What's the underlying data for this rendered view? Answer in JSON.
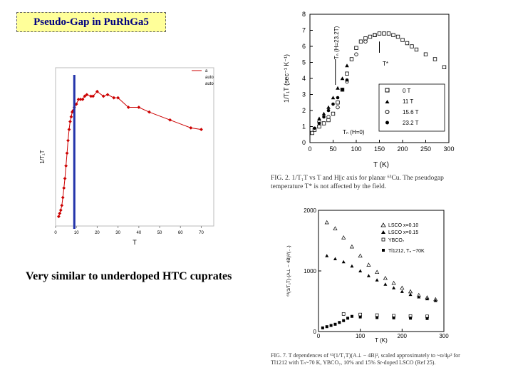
{
  "slide": {
    "title": "Pseudo-Gap in PuRh",
    "title_suffix": "Ga5",
    "subtitle": "Very similar to underdoped HTC cuprates",
    "accent_colors": {
      "title_fill": "#ffff99",
      "title_text": "#000080",
      "red_series": "#cc0000",
      "blue_line": "#2233aa"
    }
  },
  "left_plot": {
    "xlabel": "T",
    "ylabel": "1/T₁T",
    "legend": [
      "a",
      "auto",
      "auto"
    ],
    "vline_x": 9
  },
  "top_right_plot": {
    "ylabel": "1/T₁T (sec⁻¹ K⁻¹)",
    "xlabel": "T (K)",
    "legend": [
      "0 T",
      "11 T",
      "15.6 T",
      "23.2 T"
    ],
    "annotations": {
      "tc_field": "Tₙ (H=23.2T)",
      "tc_zero": "Tₙ (H=0)",
      "t_star": "T*"
    },
    "caption": "FIG. 2. 1/T₁T vs T and H||c axis for planar ⁶³Cu. The pseudogap temperature T* is not affected by the field."
  },
  "bottom_right_plot": {
    "ylabel": "⁶³(1/T₁T)·(A⊥ − 4B)²/(…)",
    "xlabel": "T (K)",
    "legend": [
      "LSCO  x=0.10",
      "LSCO  x=0.15",
      "YBCO₇",
      "Tl1212, Tₙ ~70K"
    ],
    "caption": "FIG. 7. T dependences of ⁶³(1/T₁T)(A⊥ − 4B)², scaled approximately to ~α/4μ² for Tl1212 with Tₙ~70 K, YBCO₇, 10% and 15% Sr-doped LSCO (Ref 25)."
  },
  "chart_data": [
    {
      "type": "scatter",
      "title": "",
      "xlabel": "T",
      "ylabel": "1/T₁T",
      "xlim": [
        0,
        76
      ],
      "ylim": [
        0,
        1
      ],
      "x_ticks": [
        0,
        10,
        20,
        30,
        40,
        50,
        60,
        70
      ],
      "series": [
        {
          "x": [
            1.5,
            2,
            2.5,
            3,
            3.5,
            4,
            4.5,
            5,
            5.5,
            6,
            6.5,
            7,
            7.5,
            8,
            8.5,
            9,
            10,
            11,
            12,
            13,
            14,
            15,
            17,
            18,
            20,
            23,
            25,
            28,
            30,
            35,
            40,
            45,
            55,
            65,
            70
          ],
          "y": [
            0.06,
            0.08,
            0.1,
            0.13,
            0.18,
            0.24,
            0.3,
            0.38,
            0.46,
            0.54,
            0.61,
            0.66,
            0.69,
            0.72,
            0.73,
            0.75,
            0.77,
            0.8,
            0.8,
            0.8,
            0.82,
            0.83,
            0.82,
            0.82,
            0.85,
            0.82,
            0.83,
            0.81,
            0.81,
            0.75,
            0.75,
            0.72,
            0.67,
            0.62,
            0.61
          ]
        }
      ]
    },
    {
      "type": "scatter",
      "title": "",
      "xlabel": "T (K)",
      "ylabel": "1/T₁T (sec⁻¹ K⁻¹)",
      "xlim": [
        0,
        300
      ],
      "ylim": [
        0,
        8
      ],
      "x_ticks": [
        0,
        50,
        100,
        150,
        200,
        250,
        300
      ],
      "y_ticks": [
        0,
        1,
        2,
        3,
        4,
        5,
        6,
        7,
        8
      ],
      "series": [
        {
          "name": "0 T",
          "x": [
            5,
            10,
            20,
            30,
            40,
            50,
            60,
            70,
            80,
            90,
            100,
            110,
            120,
            130,
            140,
            150,
            160,
            170,
            180,
            190,
            200,
            210,
            220,
            230,
            250,
            270,
            290
          ],
          "y": [
            0.6,
            0.8,
            1.0,
            1.2,
            1.4,
            1.8,
            2.5,
            3.3,
            4.3,
            5.2,
            5.9,
            6.3,
            6.5,
            6.6,
            6.7,
            6.8,
            6.8,
            6.8,
            6.7,
            6.6,
            6.4,
            6.2,
            6.0,
            5.8,
            5.5,
            5.2,
            4.7
          ]
        },
        {
          "name": "11 T",
          "x": [
            20,
            30,
            40,
            50,
            60,
            70,
            80
          ],
          "y": [
            1.5,
            1.8,
            2.2,
            2.8,
            3.4,
            4.0,
            4.8
          ]
        },
        {
          "name": "15.6 T",
          "x": [
            20,
            40,
            60,
            80,
            100,
            120,
            140
          ],
          "y": [
            1.3,
            1.6,
            2.2,
            3.8,
            5.5,
            6.3,
            6.7
          ]
        },
        {
          "name": "23.2 T",
          "x": [
            10,
            20,
            30,
            40,
            50,
            60,
            70,
            80
          ],
          "y": [
            0.9,
            1.2,
            1.6,
            2.0,
            2.4,
            2.8,
            3.3,
            3.9
          ]
        }
      ]
    },
    {
      "type": "scatter",
      "title": "",
      "xlabel": "T (K)",
      "ylabel": "⁶³(1/T₁T)(A⊥ − 4B)²",
      "xlim": [
        0,
        300
      ],
      "ylim": [
        0,
        2000
      ],
      "x_ticks": [
        0,
        100,
        200,
        300
      ],
      "y_ticks": [
        0,
        1000,
        2000
      ],
      "series": [
        {
          "name": "LSCO  x=0.10",
          "x": [
            20,
            40,
            60,
            80,
            100,
            120,
            140,
            160,
            180,
            200,
            220,
            240,
            260,
            280
          ],
          "y": [
            1800,
            1700,
            1550,
            1400,
            1250,
            1100,
            980,
            880,
            800,
            720,
            660,
            600,
            560,
            530
          ]
        },
        {
          "name": "LSCO  x=0.15",
          "x": [
            20,
            40,
            60,
            80,
            100,
            120,
            140,
            160,
            180,
            200,
            220,
            240,
            260,
            280
          ],
          "y": [
            1250,
            1200,
            1150,
            1080,
            1000,
            920,
            850,
            780,
            720,
            660,
            610,
            570,
            540,
            510
          ]
        },
        {
          "name": "YBCO₇",
          "x": [
            60,
            100,
            140,
            180,
            220,
            260
          ],
          "y": [
            290,
            280,
            270,
            260,
            255,
            250
          ]
        },
        {
          "name": "Tl1212, Tₙ ~70K",
          "x": [
            10,
            20,
            30,
            40,
            50,
            60,
            70,
            80,
            100,
            140,
            180,
            220,
            260
          ],
          "y": [
            60,
            80,
            100,
            120,
            150,
            180,
            220,
            250,
            240,
            230,
            225,
            220,
            215
          ]
        }
      ]
    }
  ]
}
